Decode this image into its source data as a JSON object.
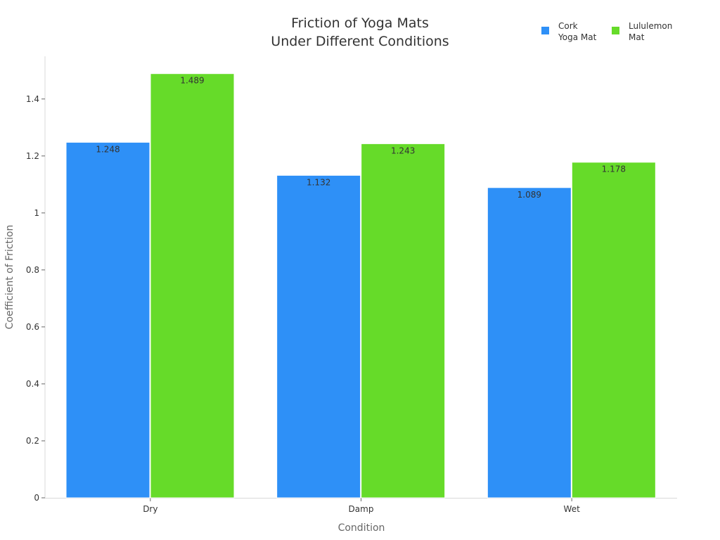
{
  "chart_data": {
    "type": "bar",
    "title_lines": [
      "Friction of Yoga Mats",
      "Under Different Conditions"
    ],
    "xlabel": "Condition",
    "ylabel": "Coefficient of Friction",
    "categories": [
      "Dry",
      "Damp",
      "Wet"
    ],
    "ylim": [
      0,
      1.55
    ],
    "yticks": [
      0,
      0.2,
      0.4,
      0.6,
      0.8,
      1,
      1.2,
      1.4
    ],
    "ytick_labels": [
      "0",
      "0.2",
      "0.4",
      "0.6",
      "0.8",
      "1",
      "1.2",
      "1.4"
    ],
    "grid": false,
    "legend_position": "top-right",
    "series": [
      {
        "name_lines": [
          "Cork",
          "Yoga Mat"
        ],
        "color": "#2e90f7",
        "values": [
          1.248,
          1.132,
          1.089
        ],
        "labels": [
          "1.248",
          "1.132",
          "1.089"
        ]
      },
      {
        "name_lines": [
          "Lululemon",
          "Mat"
        ],
        "color": "#66db29",
        "values": [
          1.489,
          1.243,
          1.178
        ],
        "labels": [
          "1.489",
          "1.243",
          "1.178"
        ]
      }
    ]
  }
}
